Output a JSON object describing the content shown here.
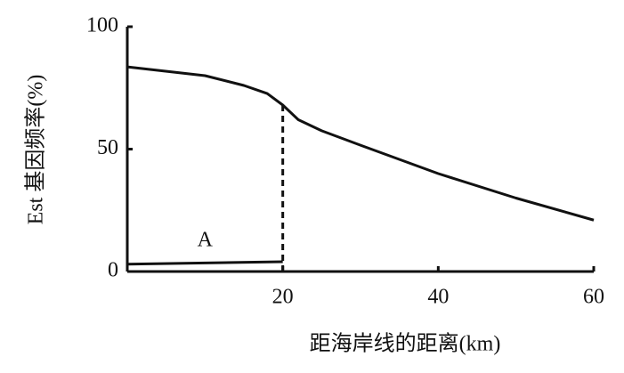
{
  "chart_data": {
    "type": "line",
    "xlabel": "距海岸线的距离(km)",
    "ylabel": "Est 基因频率(%)",
    "xlim": [
      0,
      60
    ],
    "ylim": [
      0,
      100
    ],
    "xticks": [
      20,
      40,
      60
    ],
    "yticks": [
      0,
      50,
      100
    ],
    "series": [
      {
        "color": "#111111",
        "style": "solid",
        "x": [
          0,
          10,
          15,
          18,
          20,
          22,
          25,
          30,
          40,
          50,
          60
        ],
        "values": [
          83.6,
          80,
          76,
          72.7,
          68,
          62,
          57.5,
          51.6,
          40,
          30,
          21
        ]
      },
      {
        "label": "A",
        "color": "#111111",
        "style": "solid",
        "x": [
          0,
          20
        ],
        "values": [
          3,
          4
        ]
      },
      {
        "color": "#111111",
        "style": "dashed",
        "x": [
          20,
          20
        ],
        "values": [
          68,
          0
        ]
      }
    ]
  }
}
